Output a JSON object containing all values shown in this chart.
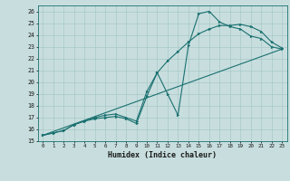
{
  "xlabel": "Humidex (Indice chaleur)",
  "bg_color": "#c8dede",
  "grid_color": "#a8c8c8",
  "line_color": "#1a7070",
  "xlim": [
    -0.5,
    23.5
  ],
  "ylim": [
    15,
    26.5
  ],
  "xticks": [
    0,
    1,
    2,
    3,
    4,
    5,
    6,
    7,
    8,
    9,
    10,
    11,
    12,
    13,
    14,
    15,
    16,
    17,
    18,
    19,
    20,
    21,
    22,
    23
  ],
  "yticks": [
    15,
    16,
    17,
    18,
    19,
    20,
    21,
    22,
    23,
    24,
    25,
    26
  ],
  "line1_x": [
    0,
    1,
    2,
    3,
    4,
    5,
    6,
    7,
    8,
    9,
    10,
    11,
    12,
    13,
    14,
    15,
    16,
    17,
    18,
    19,
    20,
    21,
    22,
    23
  ],
  "line1_y": [
    15.5,
    15.7,
    15.9,
    16.4,
    16.7,
    16.9,
    17.0,
    17.1,
    16.9,
    16.5,
    18.8,
    20.8,
    19.0,
    17.2,
    23.1,
    25.8,
    26.0,
    25.1,
    24.7,
    24.5,
    23.9,
    23.7,
    23.0,
    22.8
  ],
  "line2_x": [
    0,
    1,
    2,
    3,
    4,
    5,
    6,
    7,
    8,
    9,
    10,
    11,
    12,
    13,
    14,
    15,
    16,
    17,
    18,
    19,
    20,
    21,
    22,
    23
  ],
  "line2_y": [
    15.5,
    15.7,
    15.9,
    16.4,
    16.7,
    17.0,
    17.2,
    17.3,
    17.0,
    16.7,
    19.2,
    20.8,
    21.8,
    22.6,
    23.4,
    24.1,
    24.5,
    24.8,
    24.8,
    24.9,
    24.7,
    24.3,
    23.4,
    22.9
  ],
  "line3_x": [
    0,
    23
  ],
  "line3_y": [
    15.5,
    22.8
  ]
}
